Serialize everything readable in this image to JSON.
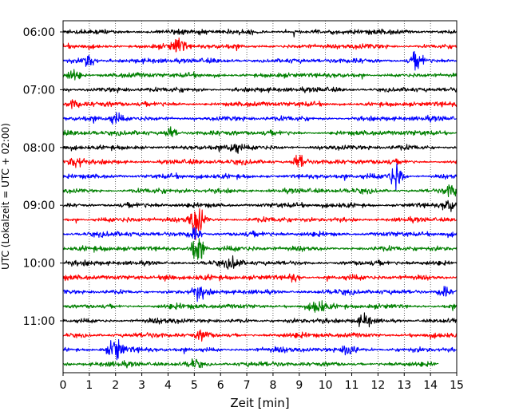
{
  "chart_data": {
    "type": "line",
    "subtype": "helicorder",
    "xlabel": "Zeit  [min]",
    "ylabel": "UTC (Lokalzeit = UTC + 02:00)",
    "xlim": [
      0,
      15
    ],
    "x_ticks": [
      "0",
      "1",
      "2",
      "3",
      "4",
      "5",
      "6",
      "7",
      "8",
      "9",
      "10",
      "11",
      "12",
      "13",
      "14",
      "15"
    ],
    "y_ticks": [
      "06:00",
      "07:00",
      "08:00",
      "09:00",
      "10:00",
      "11:00"
    ],
    "grid": "vertical dotted at each minute",
    "line_start": "06:00",
    "line_duration_min": 15,
    "trace_colors": [
      "#000000",
      "#ff0000",
      "#0000ff",
      "#008000"
    ],
    "last_trace_end_min": 14.3,
    "events": [
      {
        "line": 1,
        "center_min": 4.4,
        "amplitude": 1.8
      },
      {
        "line": 2,
        "center_min": 1.0,
        "amplitude": 2.2
      },
      {
        "line": 2,
        "center_min": 13.5,
        "amplitude": 2.0
      },
      {
        "line": 3,
        "center_min": 0.4,
        "amplitude": 1.5
      },
      {
        "line": 5,
        "center_min": 0.4,
        "amplitude": 1.2
      },
      {
        "line": 6,
        "center_min": 2.0,
        "amplitude": 1.0
      },
      {
        "line": 7,
        "center_min": 4.1,
        "amplitude": 1.5
      },
      {
        "line": 8,
        "center_min": 6.5,
        "amplitude": 1.4
      },
      {
        "line": 9,
        "center_min": 0.5,
        "amplitude": 2.0
      },
      {
        "line": 9,
        "center_min": 9.0,
        "amplitude": 2.0
      },
      {
        "line": 10,
        "center_min": 12.7,
        "amplitude": 3.5
      },
      {
        "line": 11,
        "center_min": 14.8,
        "amplitude": 1.6
      },
      {
        "line": 12,
        "center_min": 14.7,
        "amplitude": 1.6
      },
      {
        "line": 13,
        "center_min": 5.1,
        "amplitude": 4.0
      },
      {
        "line": 14,
        "center_min": 5.0,
        "amplitude": 1.5
      },
      {
        "line": 15,
        "center_min": 5.1,
        "amplitude": 3.5
      },
      {
        "line": 16,
        "center_min": 6.5,
        "amplitude": 1.2
      },
      {
        "line": 17,
        "center_min": 4.0,
        "amplitude": 1.2
      },
      {
        "line": 17,
        "center_min": 8.8,
        "amplitude": 1.0
      },
      {
        "line": 18,
        "center_min": 5.2,
        "amplitude": 1.5
      },
      {
        "line": 18,
        "center_min": 14.5,
        "amplitude": 1.5
      },
      {
        "line": 19,
        "center_min": 9.7,
        "amplitude": 1.6
      },
      {
        "line": 20,
        "center_min": 11.5,
        "amplitude": 1.4
      },
      {
        "line": 21,
        "center_min": 5.3,
        "amplitude": 1.0
      },
      {
        "line": 22,
        "center_min": 2.0,
        "amplitude": 2.6
      },
      {
        "line": 22,
        "center_min": 10.9,
        "amplitude": 2.0
      },
      {
        "line": 23,
        "center_min": 5.0,
        "amplitude": 1.0
      }
    ]
  }
}
